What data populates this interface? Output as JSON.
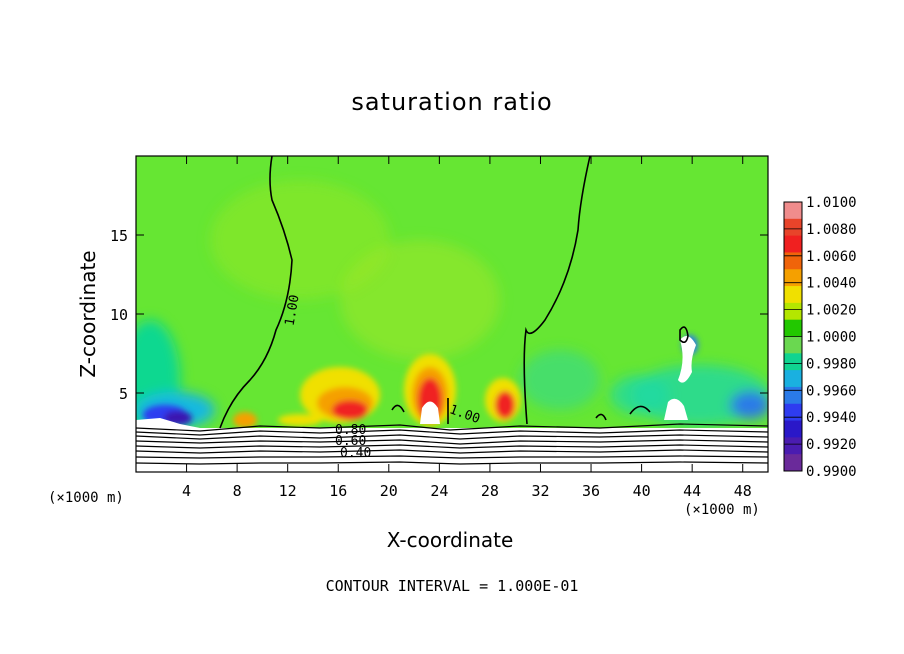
{
  "chart_data": {
    "type": "heatmap",
    "title": "saturation ratio",
    "xlabel": "X-coordinate",
    "ylabel": "Z-coordinate",
    "x_unit": "(×1000 m)",
    "xlim": [
      0,
      50
    ],
    "ylim": [
      0,
      20
    ],
    "x_ticks": [
      4,
      8,
      12,
      16,
      20,
      24,
      28,
      32,
      36,
      40,
      44,
      48
    ],
    "y_ticks": [
      5,
      10,
      15
    ],
    "colorbar": {
      "labels": [
        "1.0100",
        "1.0080",
        "1.0060",
        "1.0040",
        "1.0020",
        "1.0000",
        "0.9980",
        "0.9960",
        "0.9940",
        "0.9920",
        "0.9900"
      ],
      "colors": [
        "#f08c8c",
        "#e8442a",
        "#f02020",
        "#f0640a",
        "#f5a000",
        "#f0e000",
        "#b4e600",
        "#22c800",
        "#6ad850",
        "#10d490",
        "#1ab0e0",
        "#2a7ae8",
        "#2e3cf0",
        "#2a18c8",
        "#4a1cb0",
        "#6a2a9a"
      ]
    },
    "contour_labels": [
      "1.00",
      "1.00",
      "0.80",
      "0.60",
      "0.40"
    ],
    "contour_interval_text": "CONTOUR INTERVAL = 1.000E-01",
    "background_color": "#66e633"
  }
}
